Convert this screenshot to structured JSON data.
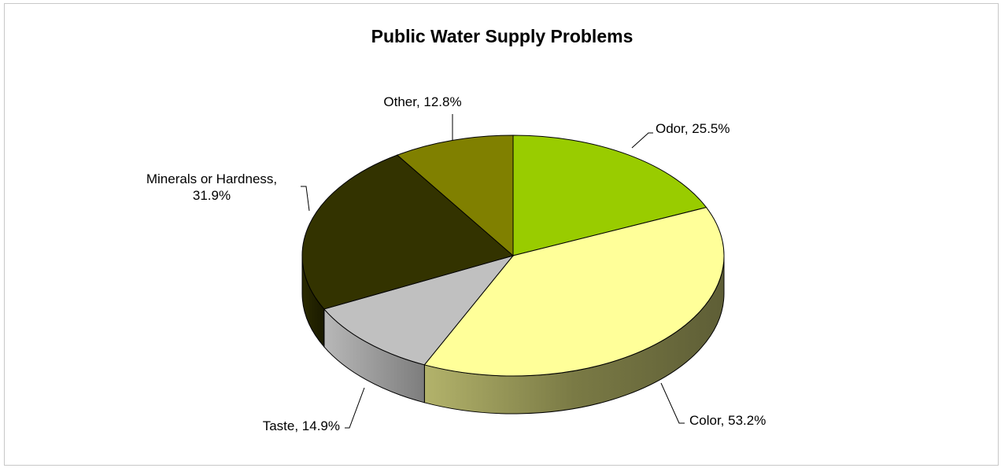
{
  "chart_data": {
    "type": "pie",
    "title": "Public Water Supply Problems",
    "categories": [
      "Odor",
      "Color",
      "Taste",
      "Minerals or Hardness",
      "Other"
    ],
    "values": [
      25.5,
      53.2,
      14.9,
      31.9,
      12.8
    ],
    "value_format": "percent",
    "three_d": true,
    "legend": "none",
    "data_labels": [
      {
        "lines": [
          "Odor, 25.5%"
        ]
      },
      {
        "lines": [
          "Color, 53.2%"
        ]
      },
      {
        "lines": [
          "Taste, 14.9%"
        ]
      },
      {
        "lines": [
          "Minerals or Hardness,",
          "31.9%"
        ]
      },
      {
        "lines": [
          "Other, 12.8%"
        ]
      }
    ],
    "colors": [
      "#99cc00",
      "#ffff99",
      "#c0c0c0",
      "#333300",
      "#808000"
    ],
    "side_colors": [
      "#6b8f00",
      "#66663d",
      "#8c8c8c",
      "#1f1f00",
      "#5a5a00"
    ]
  }
}
